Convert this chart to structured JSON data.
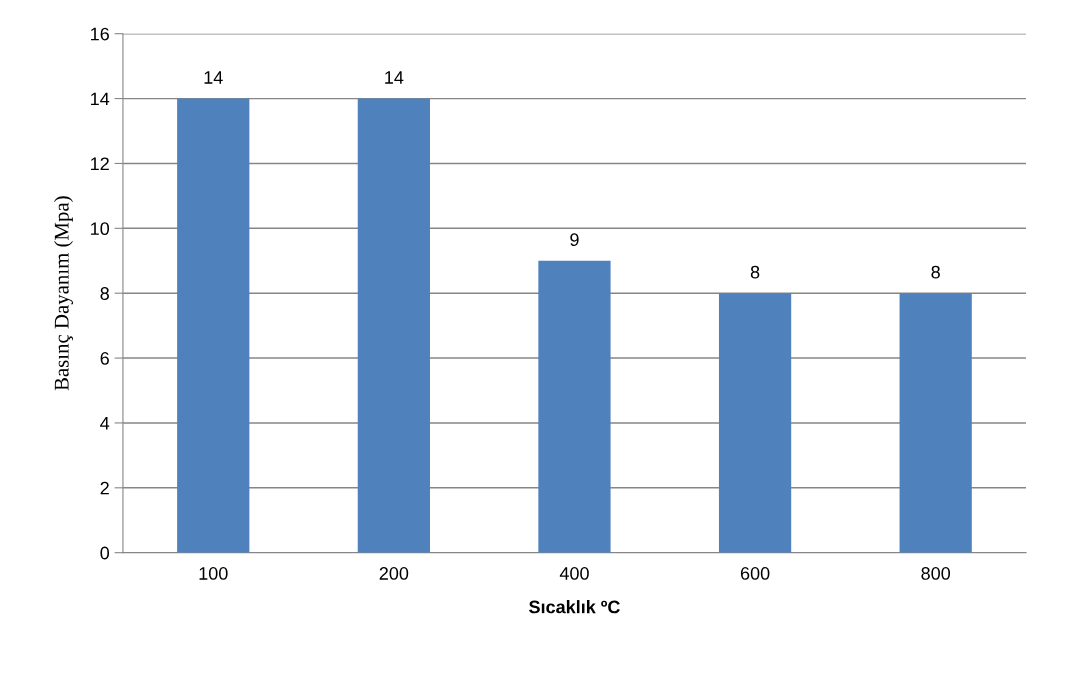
{
  "chart_data": {
    "type": "bar",
    "xlabel": "Sıcaklık ºC",
    "ylabel": "Basınç Dayanım (Mpa)",
    "categories": [
      "100",
      "200",
      "400",
      "600",
      "800"
    ],
    "values": [
      14,
      14,
      9,
      8,
      8
    ],
    "color": "#4f81bd",
    "ylim": [
      0,
      16
    ],
    "yticks": [
      0,
      2,
      4,
      6,
      8,
      10,
      12,
      14,
      16
    ],
    "grid": "y",
    "data_labels": true
  }
}
